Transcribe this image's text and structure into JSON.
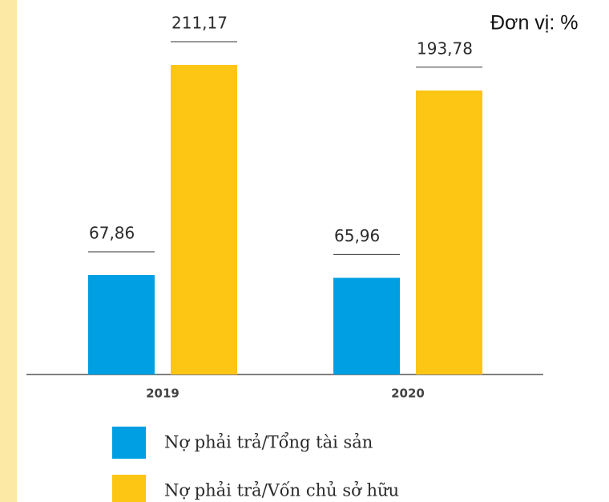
{
  "chart_data": {
    "type": "bar",
    "unit": "Đơn vị: %",
    "categories": [
      "2019",
      "2020"
    ],
    "series": [
      {
        "name": "Nợ phải trả/Tổng tài sản",
        "color": "#009fe3",
        "values": [
          67.86,
          65.96
        ],
        "value_labels": [
          "67,86",
          "65,96"
        ]
      },
      {
        "name": "Nợ phải trả/Vốn chủ sở hữu",
        "color": "#fdc514",
        "values": [
          211.17,
          193.78
        ],
        "value_labels": [
          "211,17",
          "193,78"
        ]
      }
    ]
  }
}
